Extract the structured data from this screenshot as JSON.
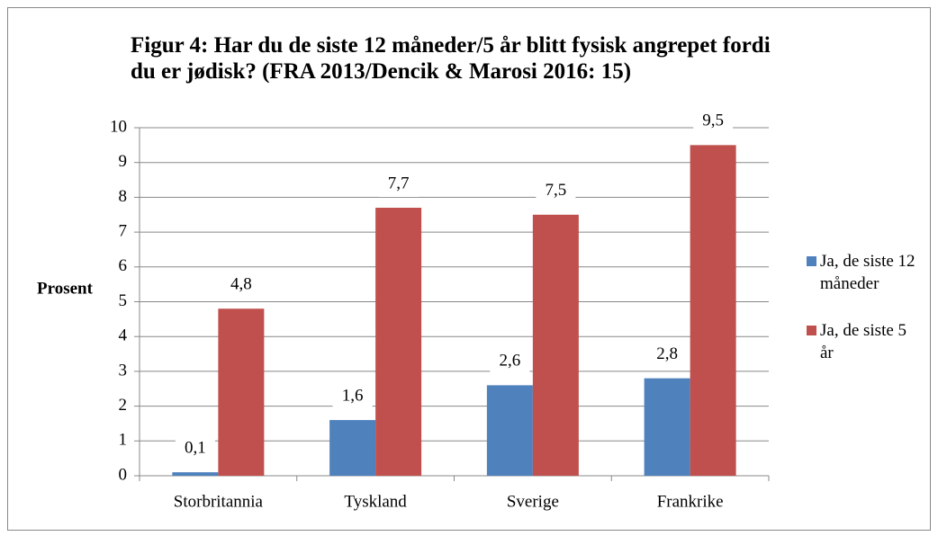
{
  "chart_data": {
    "type": "bar",
    "title": "Figur 4: Har du de siste 12 måneder/5 år blitt fysisk angrepet fordi du er jødisk? (FRA 2013/Dencik & Marosi 2016: 15)",
    "ylabel": "Prosent",
    "categories": [
      "Storbritannia",
      "Tyskland",
      "Sverige",
      "Frankrike"
    ],
    "series": [
      {
        "name": "Ja, de siste 12 måneder",
        "color": "#4f81bd",
        "values": [
          0.1,
          1.6,
          2.6,
          2.8
        ],
        "value_labels": [
          "0,1",
          "1,6",
          "2,6",
          "2,8"
        ]
      },
      {
        "name": "Ja, de siste 5 år",
        "color": "#c0504d",
        "values": [
          4.8,
          7.7,
          7.5,
          9.5
        ],
        "value_labels": [
          "4,8",
          "7,7",
          "7,5",
          "9,5"
        ]
      }
    ],
    "ylim": [
      0,
      10
    ],
    "yticks": [
      0,
      1,
      2,
      3,
      4,
      5,
      6,
      7,
      8,
      9,
      10
    ],
    "grid": true,
    "legend": "right"
  }
}
